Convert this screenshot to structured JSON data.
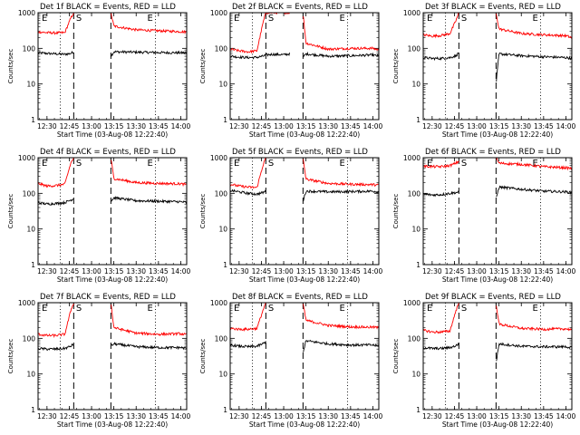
{
  "figure": {
    "background": "#ffffff",
    "colors": {
      "events": "#000000",
      "lld": "#ff0000",
      "axes": "#000000"
    }
  },
  "chart_data": [
    {
      "type": "line",
      "title": "Det 1f BLACK = Events, RED = LLD",
      "xlabel": "Start Time (03-Aug-08 12:22:40)",
      "ylabel": "Counts/sec",
      "yscale": "log",
      "ylim": [
        1,
        1000
      ],
      "xlim": [
        "12:24",
        "14:04"
      ],
      "x_ticks": [
        "12:30",
        "12:45",
        "13:00",
        "13:15",
        "13:30",
        "13:45",
        "14:00"
      ],
      "y_ticks": [
        "1",
        "10",
        "100",
        "1000"
      ],
      "annotations": [
        "E",
        "S",
        "E"
      ],
      "marker_lines": {
        "dashed": [
          "12:48",
          "13:13"
        ],
        "dotted": [
          "12:39",
          "13:43"
        ]
      },
      "gap": [
        "12:48",
        "13:13"
      ],
      "series": [
        {
          "name": "Events",
          "color": "#000000",
          "x": [
            "12:24",
            "12:30",
            "12:36",
            "12:42",
            "12:46",
            "12:48",
            "13:13",
            "13:15",
            "13:30",
            "13:45",
            "14:00",
            "14:04"
          ],
          "values": [
            75,
            72,
            70,
            68,
            72,
            80,
            60,
            80,
            78,
            76,
            75,
            74
          ]
        },
        {
          "name": "LLD",
          "color": "#ff0000",
          "x": [
            "12:24",
            "12:30",
            "12:36",
            "12:42",
            "12:46",
            "12:48",
            "13:13",
            "13:15",
            "13:30",
            "13:45",
            "14:00",
            "14:04"
          ],
          "values": [
            290,
            275,
            270,
            275,
            700,
            1000,
            1000,
            420,
            330,
            310,
            295,
            285
          ]
        }
      ]
    },
    {
      "type": "line",
      "title": "Det 2f BLACK = Events, RED = LLD",
      "xlabel": "Start Time (03-Aug-08 12:22:40)",
      "ylabel": "Counts/sec",
      "yscale": "log",
      "ylim": [
        1,
        1000
      ],
      "xlim": [
        "12:24",
        "14:04"
      ],
      "x_ticks": [
        "12:30",
        "12:45",
        "13:00",
        "13:15",
        "13:30",
        "13:45",
        "14:00"
      ],
      "y_ticks": [
        "1",
        "10",
        "100",
        "1000"
      ],
      "annotations": [
        "E",
        "S",
        "E"
      ],
      "marker_lines": {
        "dashed": [
          "12:48",
          "13:13"
        ],
        "dotted": [
          "12:39",
          "13:43"
        ]
      },
      "gap": [
        "13:04",
        "13:13"
      ],
      "series": [
        {
          "name": "Events",
          "color": "#000000",
          "x": [
            "12:24",
            "12:30",
            "12:36",
            "12:42",
            "12:46",
            "12:48",
            "12:52",
            "13:00",
            "13:04",
            "13:13",
            "13:15",
            "13:30",
            "13:45",
            "14:00",
            "14:04"
          ],
          "values": [
            60,
            57,
            55,
            56,
            60,
            65,
            68,
            66,
            70,
            55,
            70,
            60,
            62,
            65,
            60
          ]
        },
        {
          "name": "LLD",
          "color": "#ff0000",
          "x": [
            "12:24",
            "12:30",
            "12:36",
            "12:42",
            "12:46",
            "12:48",
            "12:52",
            "13:00",
            "13:04",
            "13:13",
            "13:15",
            "13:30",
            "13:45",
            "14:00",
            "14:04"
          ],
          "values": [
            95,
            85,
            80,
            85,
            500,
            1000,
            1000,
            1000,
            1000,
            1000,
            140,
            95,
            100,
            100,
            90
          ]
        }
      ]
    },
    {
      "type": "line",
      "title": "Det 3f BLACK = Events, RED = LLD",
      "xlabel": "Start Time (03-Aug-08 12:22:40)",
      "ylabel": "Counts/sec",
      "yscale": "log",
      "ylim": [
        1,
        1000
      ],
      "xlim": [
        "12:24",
        "14:04"
      ],
      "x_ticks": [
        "12:30",
        "12:45",
        "13:00",
        "13:15",
        "13:30",
        "13:45",
        "14:00"
      ],
      "y_ticks": [
        "1",
        "10",
        "100",
        "1000"
      ],
      "annotations": [
        "E",
        "S",
        "E"
      ],
      "marker_lines": {
        "dashed": [
          "12:48",
          "13:13"
        ],
        "dotted": [
          "12:39",
          "13:43"
        ]
      },
      "gap": [
        "12:48",
        "13:13"
      ],
      "series": [
        {
          "name": "Events",
          "color": "#000000",
          "x": [
            "12:24",
            "12:30",
            "12:36",
            "12:42",
            "12:46",
            "12:48",
            "13:13",
            "13:15",
            "13:30",
            "13:45",
            "14:00",
            "14:04"
          ],
          "values": [
            55,
            52,
            52,
            55,
            62,
            75,
            10,
            70,
            62,
            58,
            55,
            52
          ]
        },
        {
          "name": "LLD",
          "color": "#ff0000",
          "x": [
            "12:24",
            "12:30",
            "12:36",
            "12:42",
            "12:46",
            "12:48",
            "13:13",
            "13:15",
            "13:30",
            "13:45",
            "14:00",
            "14:04"
          ],
          "values": [
            240,
            220,
            230,
            260,
            600,
            1000,
            1000,
            350,
            260,
            240,
            225,
            200
          ]
        }
      ]
    },
    {
      "type": "line",
      "title": "Det 4f BLACK = Events, RED = LLD",
      "xlabel": "Start Time (03-Aug-08 12:22:40)",
      "ylabel": "Counts/sec",
      "yscale": "log",
      "ylim": [
        1,
        1000
      ],
      "xlim": [
        "12:24",
        "14:04"
      ],
      "x_ticks": [
        "12:30",
        "12:45",
        "13:00",
        "13:15",
        "13:30",
        "13:45",
        "14:00"
      ],
      "y_ticks": [
        "1",
        "10",
        "100",
        "1000"
      ],
      "annotations": [
        "E",
        "S",
        "E"
      ],
      "marker_lines": {
        "dashed": [
          "12:48",
          "13:13"
        ],
        "dotted": [
          "12:39",
          "13:43"
        ]
      },
      "gap": [
        "12:48",
        "13:13"
      ],
      "series": [
        {
          "name": "Events",
          "color": "#000000",
          "x": [
            "12:24",
            "12:30",
            "12:36",
            "12:42",
            "12:46",
            "12:48",
            "13:13",
            "13:15",
            "13:30",
            "13:45",
            "14:00",
            "14:04"
          ],
          "values": [
            55,
            50,
            52,
            55,
            65,
            70,
            60,
            75,
            62,
            60,
            58,
            55
          ]
        },
        {
          "name": "LLD",
          "color": "#ff0000",
          "x": [
            "12:24",
            "12:30",
            "12:36",
            "12:42",
            "12:46",
            "12:48",
            "13:13",
            "13:15",
            "13:30",
            "13:45",
            "14:00",
            "14:04"
          ],
          "values": [
            190,
            160,
            165,
            180,
            700,
            1000,
            1000,
            260,
            200,
            190,
            185,
            175
          ]
        }
      ]
    },
    {
      "type": "line",
      "title": "Det 5f BLACK = Events, RED = LLD",
      "xlabel": "Start Time (03-Aug-08 12:22:40)",
      "ylabel": "Counts/sec",
      "yscale": "log",
      "ylim": [
        1,
        1000
      ],
      "xlim": [
        "12:24",
        "14:04"
      ],
      "x_ticks": [
        "12:30",
        "12:45",
        "13:00",
        "13:15",
        "13:30",
        "13:45",
        "14:00"
      ],
      "y_ticks": [
        "1",
        "10",
        "100",
        "1000"
      ],
      "annotations": [
        "E",
        "S",
        "E"
      ],
      "marker_lines": {
        "dashed": [
          "12:48",
          "13:13"
        ],
        "dotted": [
          "12:39",
          "13:43"
        ]
      },
      "gap": [
        "12:48",
        "13:13"
      ],
      "series": [
        {
          "name": "Events",
          "color": "#000000",
          "x": [
            "12:24",
            "12:30",
            "12:36",
            "12:42",
            "12:46",
            "12:48",
            "13:13",
            "13:15",
            "13:30",
            "13:45",
            "14:00",
            "14:04"
          ],
          "values": [
            120,
            110,
            100,
            95,
            105,
            115,
            60,
            115,
            110,
            112,
            115,
            110
          ]
        },
        {
          "name": "LLD",
          "color": "#ff0000",
          "x": [
            "12:24",
            "12:30",
            "12:36",
            "12:42",
            "12:46",
            "12:48",
            "13:13",
            "13:15",
            "13:30",
            "13:45",
            "14:00",
            "14:04"
          ],
          "values": [
            180,
            160,
            150,
            145,
            600,
            1000,
            1000,
            250,
            190,
            180,
            175,
            170
          ]
        }
      ]
    },
    {
      "type": "line",
      "title": "Det 6f BLACK = Events, RED = LLD",
      "xlabel": "Start Time (03-Aug-08 12:22:40)",
      "ylabel": "Counts/sec",
      "yscale": "log",
      "ylim": [
        1,
        1000
      ],
      "xlim": [
        "12:24",
        "14:04"
      ],
      "x_ticks": [
        "12:30",
        "12:45",
        "13:00",
        "13:15",
        "13:30",
        "13:45",
        "14:00"
      ],
      "y_ticks": [
        "1",
        "10",
        "100",
        "1000"
      ],
      "annotations": [
        "E",
        "S",
        "E"
      ],
      "marker_lines": {
        "dashed": [
          "12:48",
          "13:13"
        ],
        "dotted": [
          "12:39",
          "13:43"
        ]
      },
      "gap": [
        "12:48",
        "13:13"
      ],
      "series": [
        {
          "name": "Events",
          "color": "#000000",
          "x": [
            "12:24",
            "12:30",
            "12:36",
            "12:42",
            "12:46",
            "12:48",
            "13:13",
            "13:15",
            "13:30",
            "13:45",
            "14:00",
            "14:04"
          ],
          "values": [
            95,
            90,
            92,
            100,
            105,
            110,
            70,
            150,
            130,
            115,
            110,
            105
          ]
        },
        {
          "name": "LLD",
          "color": "#ff0000",
          "x": [
            "12:24",
            "12:30",
            "12:36",
            "12:42",
            "12:46",
            "12:48",
            "13:13",
            "13:15",
            "13:30",
            "13:45",
            "14:00",
            "14:04"
          ],
          "values": [
            580,
            560,
            560,
            600,
            700,
            800,
            1000,
            700,
            650,
            560,
            520,
            500
          ]
        }
      ]
    },
    {
      "type": "line",
      "title": "Det 7f BLACK = Events, RED = LLD",
      "xlabel": "Start Time (03-Aug-08 12:22:40)",
      "ylabel": "Counts/sec",
      "yscale": "log",
      "ylim": [
        1,
        1000
      ],
      "xlim": [
        "12:24",
        "14:04"
      ],
      "x_ticks": [
        "12:30",
        "12:45",
        "13:00",
        "13:15",
        "13:30",
        "13:45",
        "14:00"
      ],
      "y_ticks": [
        "1",
        "10",
        "100",
        "1000"
      ],
      "annotations": [
        "E",
        "S",
        "E"
      ],
      "marker_lines": {
        "dashed": [
          "12:48",
          "13:13"
        ],
        "dotted": [
          "12:39",
          "13:43"
        ]
      },
      "gap": [
        "12:48",
        "13:13"
      ],
      "series": [
        {
          "name": "Events",
          "color": "#000000",
          "x": [
            "12:24",
            "12:30",
            "12:36",
            "12:42",
            "12:46",
            "12:48",
            "13:13",
            "13:15",
            "13:30",
            "13:45",
            "14:00",
            "14:04"
          ],
          "values": [
            52,
            50,
            50,
            52,
            60,
            70,
            60,
            70,
            58,
            55,
            55,
            52
          ]
        },
        {
          "name": "LLD",
          "color": "#ff0000",
          "x": [
            "12:24",
            "12:30",
            "12:36",
            "12:42",
            "12:46",
            "12:48",
            "13:13",
            "13:15",
            "13:30",
            "13:45",
            "14:00",
            "14:04"
          ],
          "values": [
            130,
            120,
            120,
            130,
            600,
            1000,
            1000,
            200,
            140,
            130,
            135,
            125
          ]
        }
      ]
    },
    {
      "type": "line",
      "title": "Det 8f BLACK = Events, RED = LLD",
      "xlabel": "Start Time (03-Aug-08 12:22:40)",
      "ylabel": "Counts/sec",
      "yscale": "log",
      "ylim": [
        1,
        1000
      ],
      "xlim": [
        "12:24",
        "14:04"
      ],
      "x_ticks": [
        "12:30",
        "12:45",
        "13:00",
        "13:15",
        "13:30",
        "13:45",
        "14:00"
      ],
      "y_ticks": [
        "1",
        "10",
        "100",
        "1000"
      ],
      "annotations": [
        "E",
        "S",
        "E"
      ],
      "marker_lines": {
        "dashed": [
          "12:48",
          "13:13"
        ],
        "dotted": [
          "12:39",
          "13:43"
        ]
      },
      "gap": [
        "12:48",
        "13:13"
      ],
      "series": [
        {
          "name": "Events",
          "color": "#000000",
          "x": [
            "12:24",
            "12:30",
            "12:36",
            "12:42",
            "12:46",
            "12:48",
            "13:13",
            "13:15",
            "13:30",
            "13:45",
            "14:00",
            "14:04"
          ],
          "values": [
            65,
            60,
            58,
            60,
            70,
            80,
            40,
            85,
            70,
            65,
            65,
            60
          ]
        },
        {
          "name": "LLD",
          "color": "#ff0000",
          "x": [
            "12:24",
            "12:30",
            "12:36",
            "12:42",
            "12:46",
            "12:48",
            "13:13",
            "13:15",
            "13:30",
            "13:45",
            "14:00",
            "14:04"
          ],
          "values": [
            190,
            180,
            180,
            190,
            600,
            1000,
            1000,
            320,
            230,
            210,
            205,
            200
          ]
        }
      ]
    },
    {
      "type": "line",
      "title": "Det 9f BLACK = Events, RED = LLD",
      "xlabel": "Start Time (03-Aug-08 12:22:40)",
      "ylabel": "Counts/sec",
      "yscale": "log",
      "ylim": [
        1,
        1000
      ],
      "xlim": [
        "12:24",
        "14:04"
      ],
      "x_ticks": [
        "12:30",
        "12:45",
        "13:00",
        "13:15",
        "13:30",
        "13:45",
        "14:00"
      ],
      "y_ticks": [
        "1",
        "10",
        "100",
        "1000"
      ],
      "annotations": [
        "E",
        "S",
        "E"
      ],
      "marker_lines": {
        "dashed": [
          "12:48",
          "13:13"
        ],
        "dotted": [
          "12:39",
          "13:43"
        ]
      },
      "gap": [
        "12:48",
        "13:13"
      ],
      "series": [
        {
          "name": "Events",
          "color": "#000000",
          "x": [
            "12:24",
            "12:30",
            "12:36",
            "12:42",
            "12:46",
            "12:48",
            "13:13",
            "13:15",
            "13:30",
            "13:45",
            "14:00",
            "14:04"
          ],
          "values": [
            55,
            52,
            52,
            55,
            62,
            70,
            20,
            70,
            60,
            58,
            58,
            55
          ]
        },
        {
          "name": "LLD",
          "color": "#ff0000",
          "x": [
            "12:24",
            "12:30",
            "12:36",
            "12:42",
            "12:46",
            "12:48",
            "13:13",
            "13:15",
            "13:30",
            "13:45",
            "14:00",
            "14:04"
          ],
          "values": [
            170,
            150,
            150,
            160,
            600,
            1000,
            1000,
            250,
            190,
            180,
            185,
            175
          ]
        }
      ]
    }
  ]
}
